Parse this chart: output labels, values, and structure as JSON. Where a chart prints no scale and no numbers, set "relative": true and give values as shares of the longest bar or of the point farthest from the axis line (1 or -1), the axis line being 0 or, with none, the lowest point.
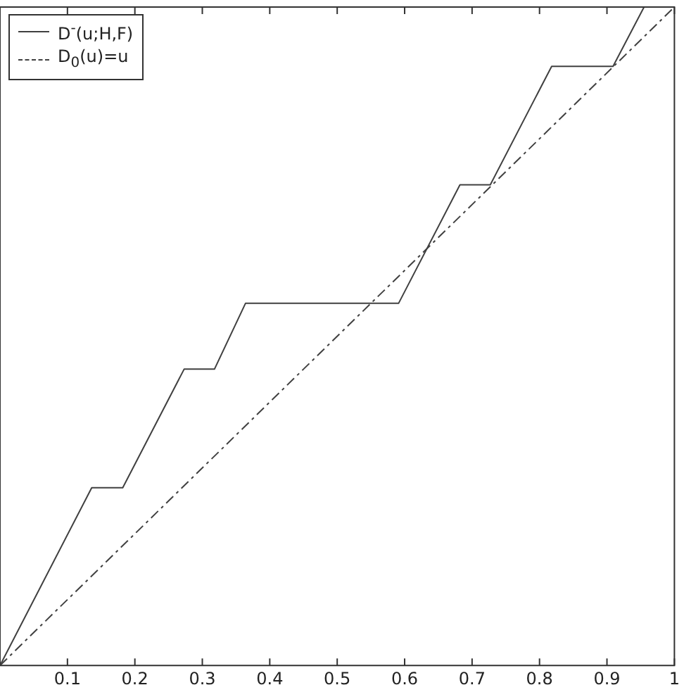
{
  "chart_data": {
    "type": "line",
    "relative": true,
    "xlim": [
      0,
      1
    ],
    "xticks": [
      0.1,
      0.2,
      0.3,
      0.4,
      0.5,
      0.6,
      0.7,
      0.8,
      0.9,
      1
    ],
    "grid": false,
    "legend": "top left",
    "marker": "none",
    "series": [
      {
        "name": "D$^{-}$(u;H,F)",
        "color": "#404040",
        "line_style": "solid",
        "x": [
          0,
          0.136,
          0.182,
          0.273,
          0.318,
          0.364,
          0.591,
          0.682,
          0.727,
          0.818,
          0.909,
          0.955
        ],
        "values": [
          0,
          0.27,
          0.27,
          0.45,
          0.45,
          0.55,
          0.55,
          0.73,
          0.73,
          0.91,
          0.91,
          1
        ]
      },
      {
        "name": "D$_{0}$(u)=u",
        "color": "#404040",
        "line_style": "dashed",
        "x": [
          0,
          1
        ],
        "values": [
          0,
          1
        ]
      }
    ]
  }
}
